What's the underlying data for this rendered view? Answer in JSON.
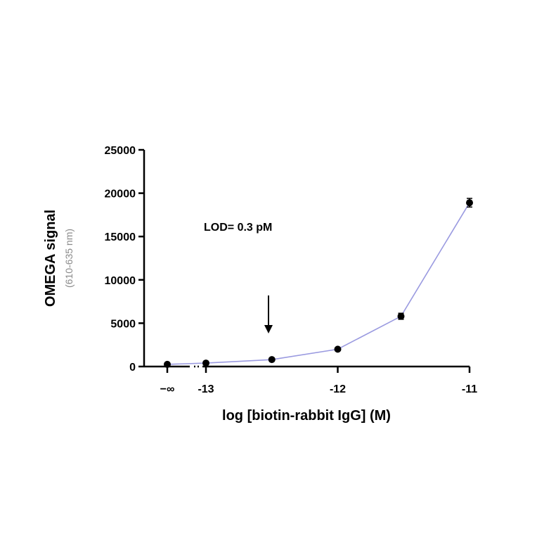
{
  "chart_data": {
    "type": "line",
    "title": "",
    "xlabel": "log [biotin-rabbit IgG] (M)",
    "ylabel": "OMEGA signal",
    "ylabel_sub": "(610-635 nm)",
    "x_tick_labels": [
      "−∞",
      "-13",
      "-12",
      "-11"
    ],
    "y_ticks": [
      0,
      5000,
      10000,
      15000,
      20000,
      25000
    ],
    "y_tick_labels": [
      "0",
      "5000",
      "10000",
      "15000",
      "20000",
      "25000"
    ],
    "ylim": [
      0,
      25000
    ],
    "xlim": [
      -13.3,
      -11
    ],
    "x_axis_broken": true,
    "grid": false,
    "series": [
      {
        "x": [
          "−∞",
          -13,
          -12.5,
          -12,
          -11.52,
          -11
        ],
        "y": [
          250,
          400,
          800,
          2000,
          5800,
          18900
        ],
        "y_error": [
          100,
          100,
          100,
          150,
          350,
          500
        ],
        "line_color": "#9a9ae0",
        "marker_color": "#000000"
      }
    ],
    "annotations": [
      {
        "text": "LOD= 0.3 pM",
        "arrow_at_x": -12.5
      }
    ]
  }
}
